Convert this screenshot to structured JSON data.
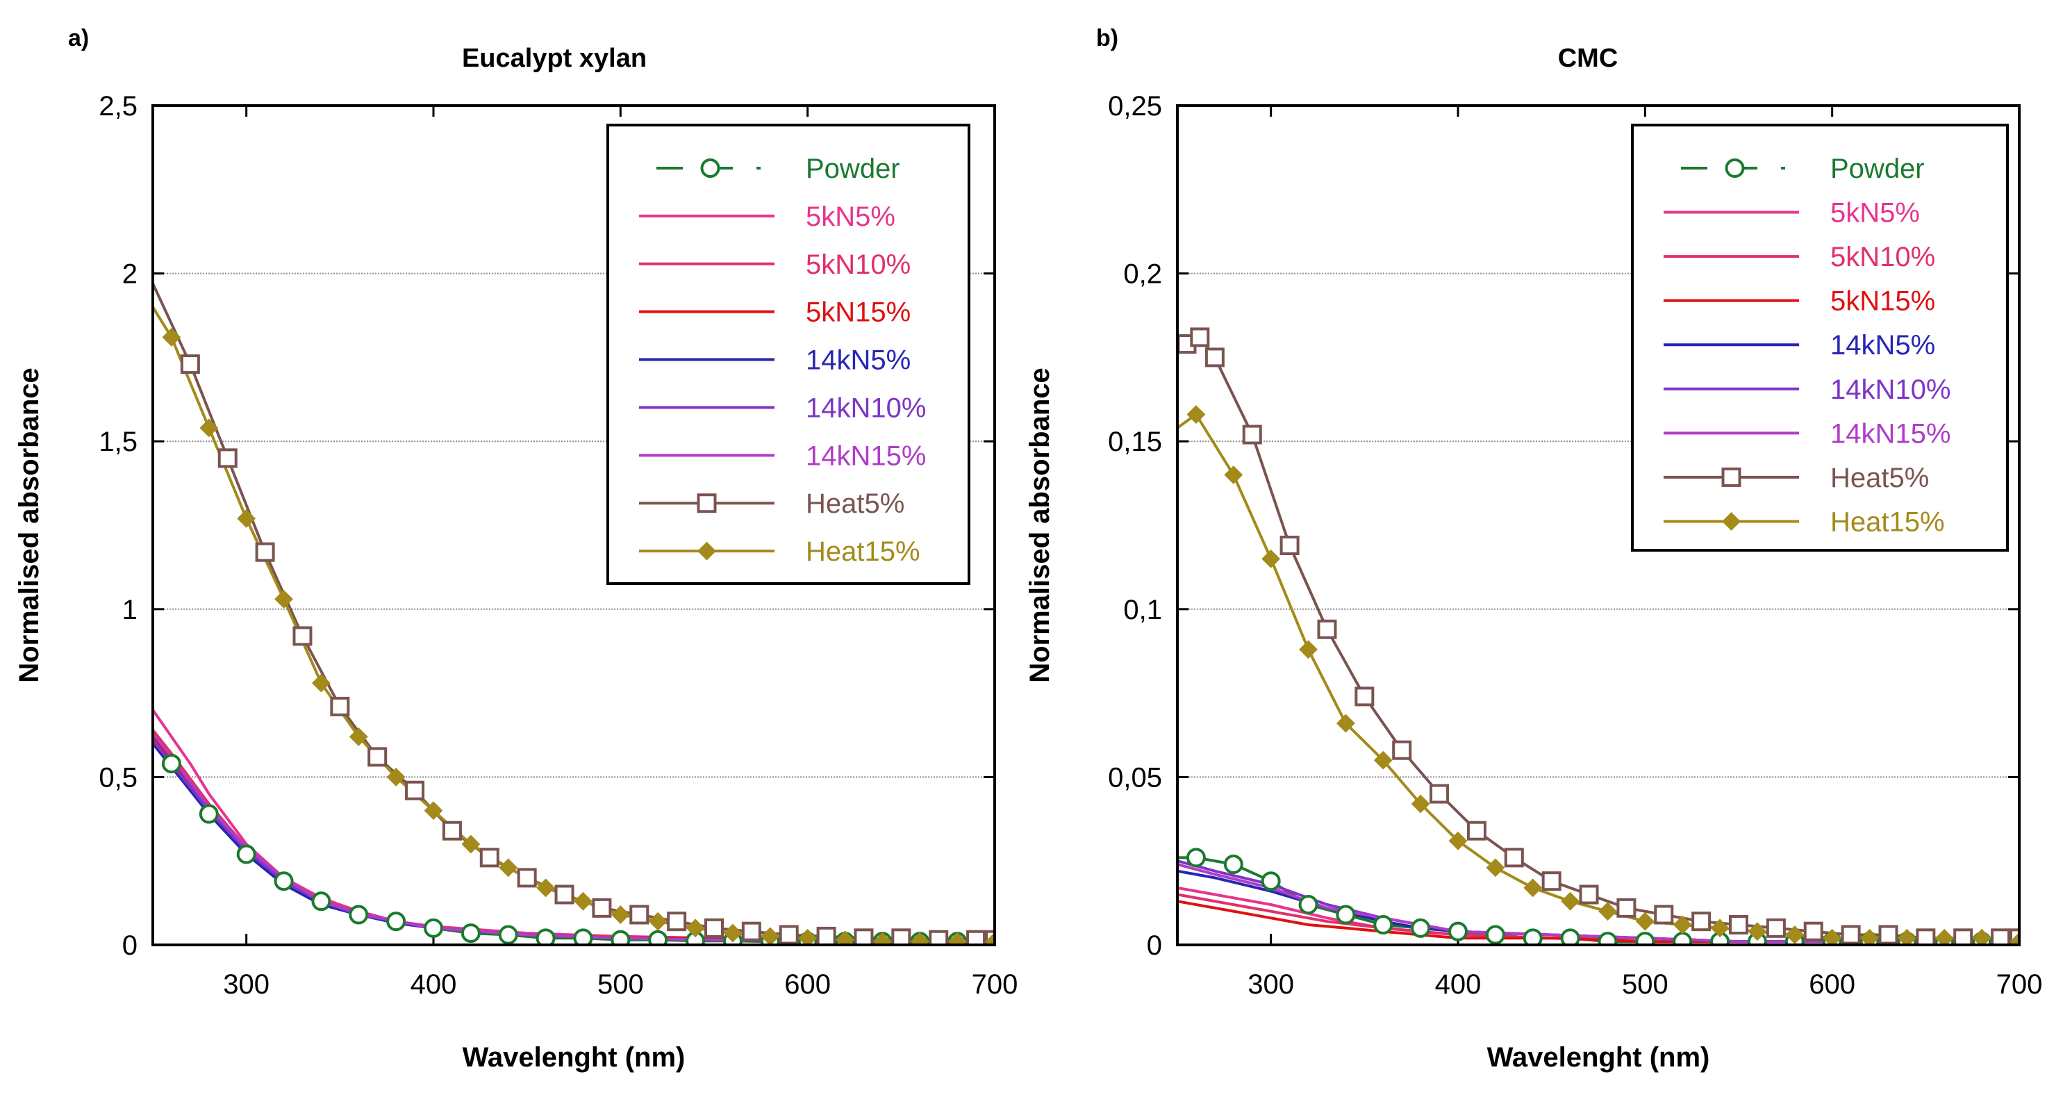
{
  "chart_data": [
    {
      "type": "line",
      "panel_label": "a)",
      "title": "Eucalypt xylan",
      "xlabel": "Wavelenght (nm)",
      "ylabel": "Normalised absorbance",
      "xlim": [
        250,
        700
      ],
      "ylim": [
        0,
        2.5
      ],
      "xticks": [
        300,
        400,
        500,
        600,
        700
      ],
      "xtick_labels": [
        "300",
        "400",
        "500",
        "600",
        "700"
      ],
      "yticks": [
        0,
        0.5,
        1,
        1.5,
        2,
        2.5
      ],
      "ytick_labels": [
        "0",
        "0,5",
        "1",
        "1,5",
        "2",
        "2,5"
      ],
      "grid": "horizontal",
      "legend_position": "top-right",
      "series": [
        {
          "name": "Powder",
          "color": "#1b7a2e",
          "marker": "circle",
          "dashed": true,
          "x": [
            250,
            260,
            280,
            300,
            320,
            340,
            360,
            380,
            400,
            420,
            440,
            460,
            480,
            500,
            520,
            540,
            560,
            580,
            600,
            620,
            640,
            660,
            680,
            700
          ],
          "y": [
            0.6,
            0.54,
            0.39,
            0.27,
            0.19,
            0.13,
            0.09,
            0.07,
            0.05,
            0.035,
            0.03,
            0.02,
            0.02,
            0.015,
            0.015,
            0.012,
            0.012,
            0.01,
            0.01,
            0.01,
            0.01,
            0.01,
            0.01,
            0.01
          ]
        },
        {
          "name": "5kN5%",
          "color": "#e8348f",
          "marker": "none",
          "dashed": false,
          "x": [
            250,
            260,
            270,
            280,
            300,
            320,
            340,
            360,
            380,
            400,
            450,
            500,
            550,
            600,
            650,
            700
          ],
          "y": [
            0.7,
            0.62,
            0.54,
            0.45,
            0.3,
            0.2,
            0.14,
            0.1,
            0.07,
            0.055,
            0.035,
            0.025,
            0.02,
            0.02,
            0.015,
            0.015
          ]
        },
        {
          "name": "5kN10%",
          "color": "#e0306a",
          "marker": "none",
          "dashed": false,
          "x": [
            250,
            260,
            280,
            300,
            320,
            340,
            360,
            380,
            400,
            450,
            500,
            550,
            600,
            650,
            700
          ],
          "y": [
            0.64,
            0.57,
            0.42,
            0.29,
            0.19,
            0.13,
            0.1,
            0.07,
            0.05,
            0.03,
            0.025,
            0.02,
            0.015,
            0.015,
            0.01
          ]
        },
        {
          "name": "5kN15%",
          "color": "#e01010",
          "marker": "none",
          "dashed": false,
          "x": [
            250,
            260,
            280,
            300,
            320,
            340,
            360,
            380,
            400,
            450,
            500,
            550,
            600,
            650,
            700
          ],
          "y": [
            0.62,
            0.55,
            0.41,
            0.28,
            0.19,
            0.13,
            0.09,
            0.07,
            0.05,
            0.03,
            0.02,
            0.02,
            0.015,
            0.01,
            0.01
          ]
        },
        {
          "name": "14kN5%",
          "color": "#2626b5",
          "marker": "none",
          "dashed": false,
          "x": [
            250,
            260,
            280,
            300,
            320,
            340,
            360,
            380,
            400,
            450,
            500,
            550,
            600,
            650,
            700
          ],
          "y": [
            0.6,
            0.53,
            0.39,
            0.27,
            0.18,
            0.12,
            0.09,
            0.065,
            0.05,
            0.03,
            0.02,
            0.015,
            0.01,
            0.01,
            0.01
          ]
        },
        {
          "name": "14kN10%",
          "color": "#7d35c8",
          "marker": "none",
          "dashed": false,
          "x": [
            250,
            260,
            280,
            300,
            320,
            340,
            360,
            380,
            400,
            450,
            500,
            550,
            600,
            650,
            700
          ],
          "y": [
            0.61,
            0.54,
            0.4,
            0.28,
            0.19,
            0.13,
            0.09,
            0.07,
            0.05,
            0.03,
            0.02,
            0.015,
            0.012,
            0.01,
            0.01
          ]
        },
        {
          "name": "14kN15%",
          "color": "#b03cc8",
          "marker": "none",
          "dashed": false,
          "x": [
            250,
            260,
            280,
            300,
            320,
            340,
            360,
            380,
            400,
            450,
            500,
            550,
            600,
            650,
            700
          ],
          "y": [
            0.63,
            0.56,
            0.41,
            0.29,
            0.2,
            0.13,
            0.095,
            0.07,
            0.05,
            0.03,
            0.02,
            0.015,
            0.012,
            0.01,
            0.01
          ]
        },
        {
          "name": "Heat5%",
          "color": "#7a5450",
          "marker": "square",
          "dashed": false,
          "x": [
            250,
            270,
            290,
            310,
            330,
            350,
            370,
            390,
            410,
            430,
            450,
            470,
            490,
            510,
            530,
            550,
            570,
            590,
            610,
            630,
            650,
            670,
            690,
            700
          ],
          "y": [
            1.97,
            1.73,
            1.45,
            1.17,
            0.92,
            0.71,
            0.56,
            0.46,
            0.34,
            0.26,
            0.2,
            0.15,
            0.11,
            0.09,
            0.07,
            0.05,
            0.04,
            0.03,
            0.025,
            0.02,
            0.02,
            0.015,
            0.015,
            0.015
          ]
        },
        {
          "name": "Heat15%",
          "color": "#a38a1a",
          "marker": "diamond",
          "dashed": false,
          "x": [
            250,
            260,
            280,
            300,
            320,
            340,
            360,
            380,
            400,
            420,
            440,
            460,
            480,
            500,
            520,
            540,
            560,
            580,
            600,
            620,
            640,
            660,
            680,
            700
          ],
          "y": [
            1.9,
            1.81,
            1.54,
            1.27,
            1.03,
            0.78,
            0.62,
            0.5,
            0.4,
            0.3,
            0.23,
            0.17,
            0.13,
            0.09,
            0.07,
            0.05,
            0.035,
            0.025,
            0.02,
            0.015,
            0.01,
            0.01,
            0.01,
            0.01
          ]
        }
      ]
    },
    {
      "type": "line",
      "panel_label": "b)",
      "title": "CMC",
      "xlabel": "Wavelenght (nm)",
      "ylabel": "Normalised absorbance",
      "xlim": [
        250,
        700
      ],
      "ylim": [
        0,
        0.25
      ],
      "xticks": [
        300,
        400,
        500,
        600,
        700
      ],
      "xtick_labels": [
        "300",
        "400",
        "500",
        "600",
        "700"
      ],
      "yticks": [
        0,
        0.05,
        0.1,
        0.15,
        0.2,
        0.25
      ],
      "ytick_labels": [
        "0",
        "0,05",
        "0,1",
        "0,15",
        "0,2",
        "0,25"
      ],
      "grid": "horizontal",
      "legend_position": "top-right",
      "series": [
        {
          "name": "Powder",
          "color": "#1b7a2e",
          "marker": "circle",
          "dashed": true,
          "x": [
            250,
            260,
            280,
            300,
            320,
            340,
            360,
            380,
            400,
            420,
            440,
            460,
            480,
            500,
            520,
            540,
            560,
            580,
            600,
            620,
            640,
            660,
            680,
            700
          ],
          "y": [
            0.026,
            0.026,
            0.024,
            0.019,
            0.012,
            0.009,
            0.006,
            0.005,
            0.004,
            0.003,
            0.002,
            0.002,
            0.001,
            0.001,
            0.001,
            0.001,
            0.001,
            0.001,
            0.001,
            0.001,
            0.001,
            0.0005,
            0.001,
            0.001
          ]
        },
        {
          "name": "5kN5%",
          "color": "#e8348f",
          "marker": "none",
          "dashed": false,
          "x": [
            250,
            270,
            300,
            330,
            360,
            380,
            400,
            450,
            500,
            550,
            600,
            650,
            700
          ],
          "y": [
            0.017,
            0.015,
            0.012,
            0.008,
            0.005,
            0.004,
            0.003,
            0.002,
            0.002,
            0.001,
            0.001,
            0.001,
            0.001
          ]
        },
        {
          "name": "5kN10%",
          "color": "#e0306a",
          "marker": "none",
          "dashed": false,
          "x": [
            250,
            270,
            300,
            330,
            360,
            380,
            400,
            450,
            500,
            550,
            600,
            650,
            700
          ],
          "y": [
            0.015,
            0.013,
            0.01,
            0.007,
            0.005,
            0.004,
            0.003,
            0.002,
            0.002,
            0.001,
            0.001,
            0.001,
            0.001
          ]
        },
        {
          "name": "5kN15%",
          "color": "#e01010",
          "marker": "none",
          "dashed": false,
          "x": [
            250,
            270,
            300,
            320,
            340,
            360,
            380,
            400,
            450,
            500,
            550,
            600,
            650,
            700
          ],
          "y": [
            0.013,
            0.011,
            0.008,
            0.006,
            0.005,
            0.004,
            0.003,
            0.002,
            0.002,
            0.001,
            0.001,
            0.001,
            0.001,
            0.001
          ]
        },
        {
          "name": "14kN5%",
          "color": "#2626b5",
          "marker": "none",
          "dashed": false,
          "x": [
            250,
            270,
            300,
            330,
            360,
            380,
            400,
            450,
            500,
            550,
            600,
            650,
            700
          ],
          "y": [
            0.022,
            0.02,
            0.016,
            0.011,
            0.007,
            0.005,
            0.004,
            0.003,
            0.002,
            0.001,
            0.001,
            0.001,
            0.001
          ]
        },
        {
          "name": "14kN10%",
          "color": "#7d35c8",
          "marker": "none",
          "dashed": false,
          "x": [
            250,
            270,
            300,
            330,
            360,
            380,
            400,
            450,
            500,
            550,
            600,
            650,
            700
          ],
          "y": [
            0.025,
            0.022,
            0.018,
            0.012,
            0.008,
            0.006,
            0.004,
            0.003,
            0.002,
            0.001,
            0.001,
            0.001,
            0.001
          ]
        },
        {
          "name": "14kN15%",
          "color": "#b03cc8",
          "marker": "none",
          "dashed": false,
          "x": [
            250,
            270,
            300,
            330,
            360,
            380,
            400,
            450,
            500,
            550,
            600,
            650,
            700
          ],
          "y": [
            0.024,
            0.021,
            0.017,
            0.011,
            0.008,
            0.006,
            0.004,
            0.003,
            0.002,
            0.001,
            0.001,
            0.001,
            0.001
          ]
        },
        {
          "name": "Heat5%",
          "color": "#7a5450",
          "marker": "square",
          "dashed": false,
          "x": [
            250,
            255,
            262,
            270,
            290,
            310,
            330,
            350,
            370,
            390,
            410,
            430,
            450,
            470,
            490,
            510,
            530,
            550,
            570,
            590,
            610,
            630,
            650,
            670,
            690,
            700
          ],
          "y": [
            0.176,
            0.179,
            0.181,
            0.175,
            0.152,
            0.119,
            0.094,
            0.074,
            0.058,
            0.045,
            0.034,
            0.026,
            0.019,
            0.015,
            0.011,
            0.009,
            0.007,
            0.006,
            0.005,
            0.004,
            0.003,
            0.003,
            0.002,
            0.002,
            0.002,
            0.002
          ]
        },
        {
          "name": "Heat15%",
          "color": "#a38a1a",
          "marker": "diamond",
          "dashed": false,
          "x": [
            250,
            260,
            280,
            300,
            320,
            340,
            360,
            380,
            400,
            420,
            440,
            460,
            480,
            500,
            520,
            540,
            560,
            580,
            600,
            620,
            640,
            660,
            680,
            700
          ],
          "y": [
            0.154,
            0.158,
            0.14,
            0.115,
            0.088,
            0.066,
            0.055,
            0.042,
            0.031,
            0.023,
            0.017,
            0.013,
            0.01,
            0.007,
            0.006,
            0.005,
            0.004,
            0.003,
            0.002,
            0.002,
            0.002,
            0.002,
            0.002,
            0.001
          ]
        }
      ]
    }
  ]
}
